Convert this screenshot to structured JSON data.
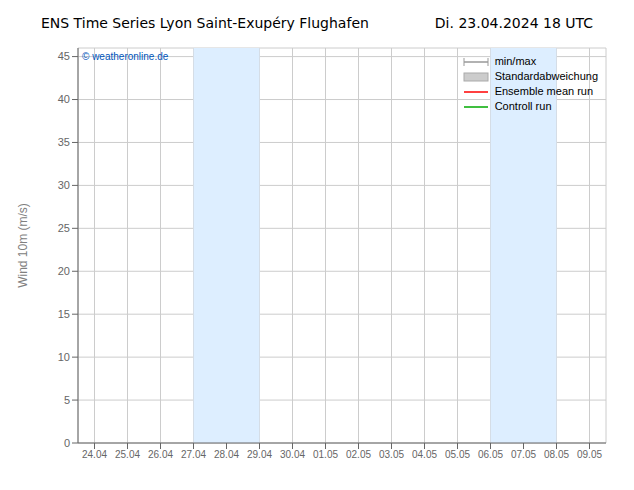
{
  "chart_data": {
    "type": "line",
    "title": "ENS Time Series Lyon Saint-Exupéry Flughafen",
    "subtitle": "Di. 23.04.2024 18 UTC",
    "y_label": "Wind 10m (m/s)",
    "annotations": [
      {
        "text": "© weatheronline.de",
        "color": "#0055bb"
      }
    ],
    "categories": [
      "24.04",
      "25.04",
      "26.04",
      "27.04",
      "28.04",
      "29.04",
      "30.04",
      "01.05",
      "02.05",
      "03.05",
      "04.05",
      "05.05",
      "06.05",
      "07.05",
      "08.05",
      "09.05"
    ],
    "ylim": [
      0,
      46
    ],
    "yticks": [
      0,
      5,
      10,
      15,
      20,
      25,
      30,
      35,
      40,
      45
    ],
    "grid": true,
    "legend": "upper right",
    "shaded_bands": [
      {
        "from": "27.04",
        "to": "29.04",
        "color": "#ddeeff"
      },
      {
        "from": "06.05",
        "to": "08.05",
        "color": "#ddeeff"
      }
    ],
    "series": [
      {
        "name": "min/max",
        "color": "#999999",
        "type": "line",
        "marker": "|",
        "values": [
          null,
          null,
          null,
          null,
          null,
          null,
          null,
          null,
          null,
          null,
          null,
          null,
          null,
          null,
          null,
          null
        ]
      },
      {
        "name": "Standardabweichung",
        "color": "#cccccc",
        "type": "area",
        "values": [
          null,
          null,
          null,
          null,
          null,
          null,
          null,
          null,
          null,
          null,
          null,
          null,
          null,
          null,
          null,
          null
        ]
      },
      {
        "name": "Ensemble mean run",
        "color": "#ff0000",
        "type": "line",
        "values": [
          null,
          null,
          null,
          null,
          null,
          null,
          null,
          null,
          null,
          null,
          null,
          null,
          null,
          null,
          null,
          null
        ]
      },
      {
        "name": "Controll run",
        "color": "#00aa00",
        "type": "line",
        "values": [
          null,
          null,
          null,
          null,
          null,
          null,
          null,
          null,
          null,
          null,
          null,
          null,
          null,
          null,
          null,
          null
        ]
      }
    ]
  }
}
